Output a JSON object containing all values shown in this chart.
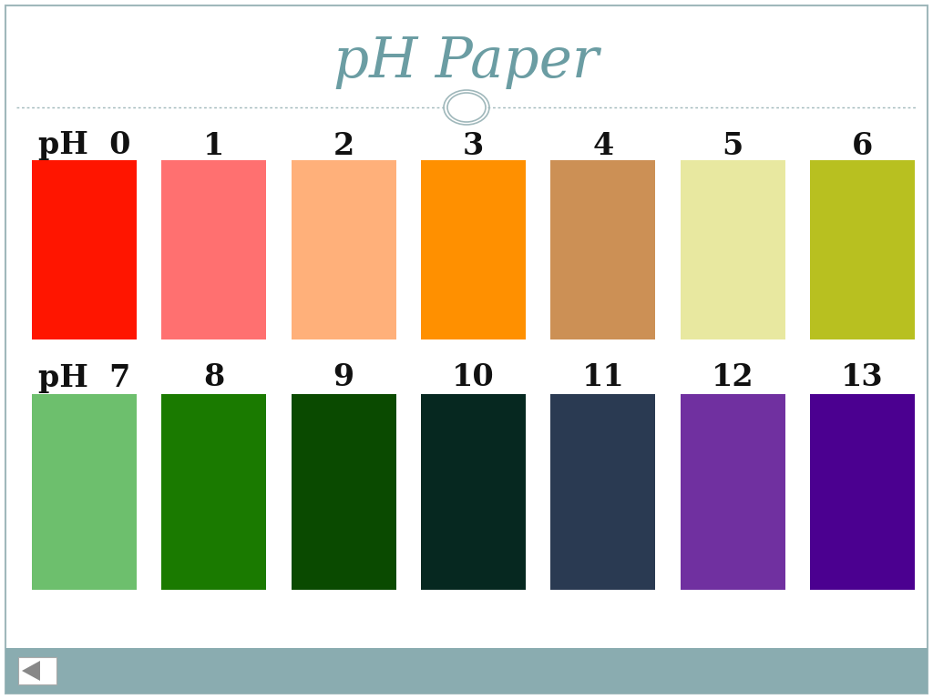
{
  "title": "pH Paper",
  "title_color": "#6b9da3",
  "title_fontsize": 44,
  "background_color": "#ffffff",
  "border_color": "#a0b8bb",
  "row1_labels": [
    "pH  0",
    "1",
    "2",
    "3",
    "4",
    "5",
    "6"
  ],
  "row2_labels": [
    "pH  7",
    "8",
    "9",
    "10",
    "11",
    "12",
    "13"
  ],
  "row1_colors": [
    "#ff1500",
    "#ff7070",
    "#ffb07a",
    "#ff9000",
    "#cc9055",
    "#e8e8a0",
    "#b8c020"
  ],
  "row2_colors": [
    "#6dbf6d",
    "#1a7a00",
    "#0a4a00",
    "#062820",
    "#2a3a52",
    "#7030a0",
    "#4b0090"
  ],
  "footer_color": "#8aacb0",
  "divider_color": "#a0b8bb",
  "label_fontsize": 24,
  "label_color": "#111111"
}
